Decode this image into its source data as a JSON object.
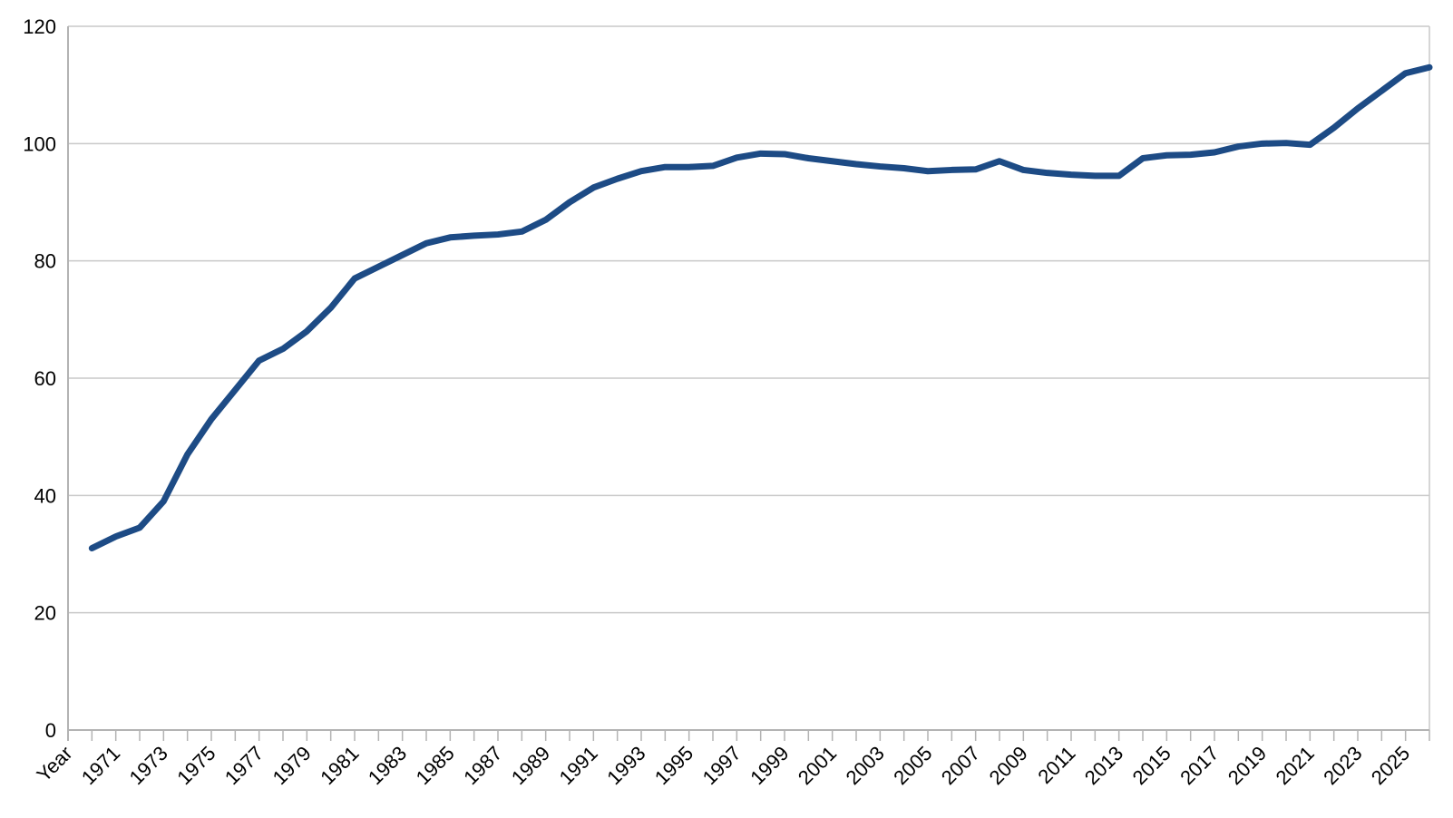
{
  "chart_data": {
    "type": "line",
    "title": "",
    "xlabel": "",
    "ylabel": "",
    "legend_position": "none",
    "grid": "horizontal",
    "x_axis_header": "Year",
    "label_every_n_categories": 2,
    "ylim": [
      0,
      120
    ],
    "y_ticks": [
      0,
      20,
      40,
      60,
      80,
      100,
      120
    ],
    "x_tick_labels": [
      "Year",
      "1971",
      "1973",
      "1975",
      "1977",
      "1979",
      "1981",
      "1983",
      "1985",
      "1987",
      "1989",
      "1991",
      "1993",
      "1995",
      "1997",
      "1999",
      "2001",
      "2003",
      "2005",
      "2007",
      "2009",
      "2011",
      "2013",
      "2015",
      "2017",
      "2019",
      "2021",
      "2023",
      "2025"
    ],
    "categories": [
      1970,
      1971,
      1972,
      1973,
      1974,
      1975,
      1976,
      1977,
      1978,
      1979,
      1980,
      1981,
      1982,
      1983,
      1984,
      1985,
      1986,
      1987,
      1988,
      1989,
      1990,
      1991,
      1992,
      1993,
      1994,
      1995,
      1996,
      1997,
      1998,
      1999,
      2000,
      2001,
      2002,
      2003,
      2004,
      2005,
      2006,
      2007,
      2008,
      2009,
      2010,
      2011,
      2012,
      2013,
      2014,
      2015,
      2016,
      2017,
      2018,
      2019,
      2020,
      2021,
      2022,
      2023,
      2024,
      2025,
      2026
    ],
    "series": [
      {
        "name": "",
        "values": [
          31,
          33,
          34.5,
          39,
          47,
          53,
          58,
          63,
          65,
          68,
          72,
          77,
          79,
          81,
          83,
          84,
          84.3,
          84.5,
          85,
          87,
          90,
          92.5,
          94,
          95.3,
          96,
          96,
          96.2,
          97.6,
          98.3,
          98.2,
          97.5,
          97,
          96.5,
          96.1,
          95.8,
          95.3,
          95.5,
          95.6,
          97,
          95.5,
          95,
          94.7,
          94.5,
          94.5,
          97.5,
          98,
          98.1,
          98.5,
          99.5,
          100,
          100.1,
          99.8,
          102.7,
          106,
          109,
          112,
          113
        ]
      }
    ],
    "colors": {
      "line": "#1d4b85",
      "axis": "#b3b3b3",
      "grid": "#c9c9c9",
      "text": "#000000",
      "background": "#ffffff"
    }
  }
}
